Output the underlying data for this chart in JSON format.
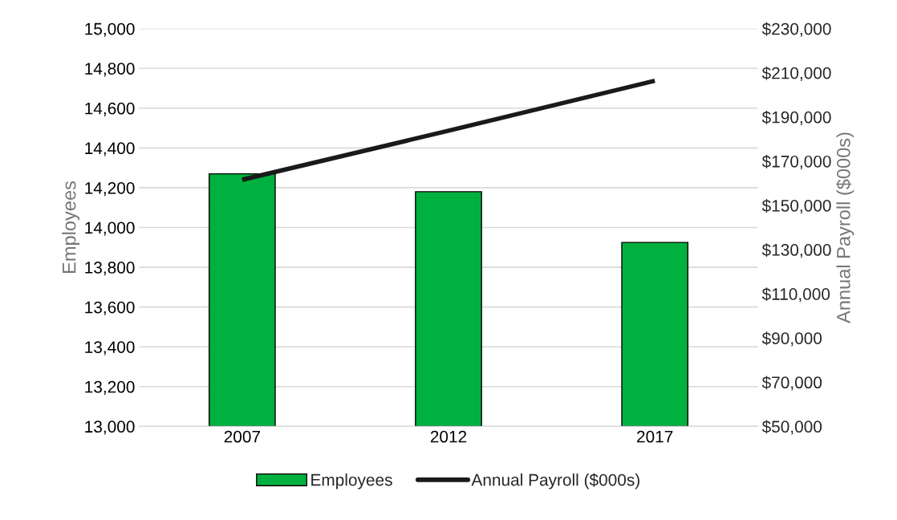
{
  "chart_data": {
    "type": "bar",
    "categories": [
      "2007",
      "2012",
      "2017"
    ],
    "series": [
      {
        "name": "Employees",
        "color": "#00b140",
        "values": [
          14270,
          14180,
          13925
        ]
      },
      {
        "name": "Annual Payroll ($000s)",
        "type": "line",
        "axis": "y2",
        "color": "#1a1a1a",
        "values": [
          161600,
          183800,
          206400
        ]
      }
    ],
    "ylabel": "Employees",
    "y2label": "Annual Payroll ($000s)",
    "ylim": [
      13000,
      15000
    ],
    "yticks": [
      {
        "value": 13000,
        "label": "13,000"
      },
      {
        "value": 13200,
        "label": "13,200"
      },
      {
        "value": 13400,
        "label": "13,400"
      },
      {
        "value": 13600,
        "label": "13,600"
      },
      {
        "value": 13800,
        "label": "13,800"
      },
      {
        "value": 14000,
        "label": "14,000"
      },
      {
        "value": 14200,
        "label": "14,200"
      },
      {
        "value": 14400,
        "label": "14,400"
      },
      {
        "value": 14600,
        "label": "14,600"
      },
      {
        "value": 14800,
        "label": "14,800"
      },
      {
        "value": 15000,
        "label": "15,000"
      }
    ],
    "y2lim": [
      50000,
      230000
    ],
    "y2ticks": [
      {
        "value": 50000,
        "label": "$50,000"
      },
      {
        "value": 70000,
        "label": "$70,000"
      },
      {
        "value": 90000,
        "label": "$90,000"
      },
      {
        "value": 110000,
        "label": "$110,000"
      },
      {
        "value": 130000,
        "label": "$130,000"
      },
      {
        "value": 150000,
        "label": "$150,000"
      },
      {
        "value": 170000,
        "label": "$170,000"
      },
      {
        "value": 190000,
        "label": "$190,000"
      },
      {
        "value": 210000,
        "label": "$210,000"
      },
      {
        "value": 230000,
        "label": "$230,000"
      }
    ],
    "grid": "y",
    "legend": "bottom",
    "marker": "none",
    "line_style": "solid"
  }
}
